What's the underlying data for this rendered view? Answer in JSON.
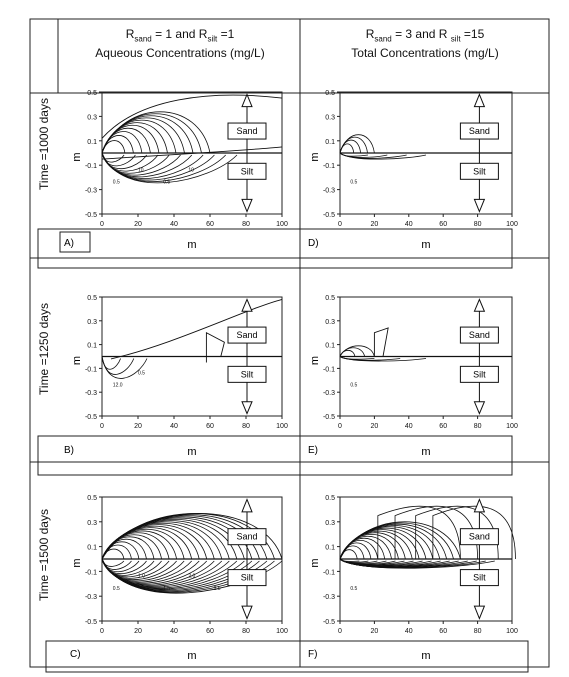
{
  "headers": {
    "left": {
      "line1": {
        "r": "R",
        "s1": "sand",
        "eq1": " = 1 and R",
        "s2": "silt",
        "eq2": " =1"
      },
      "line2": "Aqueous  Concentrations (mg/L)"
    },
    "right": {
      "line1": {
        "r": "R",
        "s1": "sand",
        "eq1": " = 3 and R ",
        "s2": "silt",
        "eq2": " =15"
      },
      "line2": "Total Concentrations (mg/L)"
    }
  },
  "rows": [
    {
      "label": "Time =1000 days"
    },
    {
      "label": "Time =1250 days"
    },
    {
      "label": "Time =1500 days"
    }
  ],
  "panels": [
    {
      "id": "A)",
      "xlabel": "m",
      "ylabel": "m",
      "sand": "Sand",
      "silt": "Silt",
      "contour_labels": [
        "0.5",
        "10",
        "0.5",
        "10"
      ]
    },
    {
      "id": "D)",
      "xlabel": "m",
      "ylabel": "m",
      "sand": "Sand",
      "silt": "Silt",
      "contour_labels": [
        "0.5"
      ]
    },
    {
      "id": "B)",
      "xlabel": "m",
      "ylabel": "m",
      "sand": "Sand",
      "silt": "Silt",
      "contour_labels": [
        "12.0",
        "0.5"
      ]
    },
    {
      "id": "E)",
      "xlabel": "m",
      "ylabel": "m",
      "sand": "Sand",
      "silt": "Silt",
      "contour_labels": [
        "0.5"
      ]
    },
    {
      "id": "C)",
      "xlabel": "m",
      "ylabel": "m",
      "sand": "Sand",
      "silt": "Silt",
      "contour_labels": [
        "0.5",
        "1.0",
        "1.5",
        "2.0",
        "2.5"
      ]
    },
    {
      "id": "F)",
      "xlabel": "m",
      "ylabel": "m",
      "sand": "Sand",
      "silt": "Silt",
      "contour_labels": [
        "0.5"
      ]
    }
  ],
  "axes": {
    "xticks": [
      "0",
      "20",
      "40",
      "60",
      "80",
      "100"
    ],
    "yticks": [
      "0.5",
      "0.3",
      "0.1",
      "-0.1",
      "-0.3",
      "-0.5"
    ],
    "xlim": [
      0,
      100
    ],
    "ylim": [
      -0.5,
      0.5
    ]
  }
}
